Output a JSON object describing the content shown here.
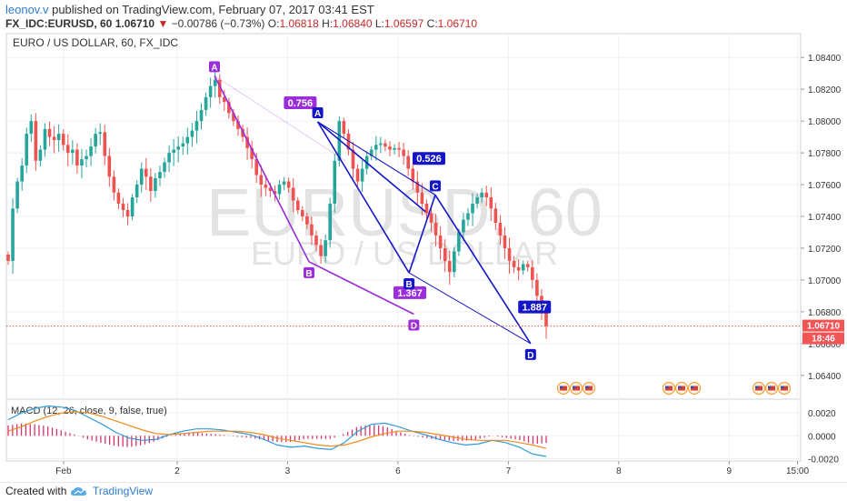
{
  "header": {
    "author": "leonov.v",
    "published_text": "published on TradingView.com, February 07, 2017 03:41 EST",
    "symbol": "FX_IDC:EURUSD, 60",
    "last": "1.06710",
    "change": "−0.00786 (−0.73%)",
    "o_label": "O:",
    "o": "1.06818",
    "h_label": "H:",
    "h": "1.06840",
    "l_label": "L:",
    "l": "1.06597",
    "c_label": "C:",
    "c": "1.06710"
  },
  "chart_title": "EURO / US DOLLAR, 60, FX_IDC",
  "watermark": {
    "line1": "EURUSD, 60",
    "line2": "EURO / US DOLLAR"
  },
  "price_badge": {
    "price": "1.06710",
    "countdown": "18:46"
  },
  "footer": {
    "created": "Created with",
    "brand": "TradingView"
  },
  "colors": {
    "bull": "#26a69a",
    "bear": "#ef5350",
    "purple": "#9b2ddb",
    "blue": "#1515c8",
    "badge": "#f05454"
  },
  "chart_data": [
    {
      "type": "candlestick",
      "title": "EURO / US DOLLAR, 60, FX_IDC",
      "y_ticks": [
        "1.08400",
        "1.08200",
        "1.08000",
        "1.07800",
        "1.07600",
        "1.07400",
        "1.07200",
        "1.07000",
        "1.06800",
        "1.06600",
        "1.06400"
      ],
      "ylim": [
        1.0625,
        1.0855
      ],
      "x_ticks": [
        "Feb",
        "2",
        "3",
        "6",
        "7",
        "8",
        "9",
        "15:00"
      ],
      "close_series": [
        1.0712,
        1.0745,
        1.0762,
        1.0772,
        1.0792,
        1.08,
        1.0775,
        1.0782,
        1.0795,
        1.079,
        1.0788,
        1.0792,
        1.0785,
        1.078,
        1.0782,
        1.0772,
        1.0776,
        1.0778,
        1.0784,
        1.0792,
        1.0793,
        1.0778,
        1.0765,
        1.0755,
        1.0748,
        1.0744,
        1.074,
        1.0752,
        1.076,
        1.077,
        1.0765,
        1.0756,
        1.0764,
        1.0768,
        1.0774,
        1.078,
        1.0782,
        1.0784,
        1.0786,
        1.079,
        1.0794,
        1.08,
        1.0807,
        1.0815,
        1.0822,
        1.0826,
        1.0815,
        1.0812,
        1.0805,
        1.08,
        1.0795,
        1.079,
        1.0783,
        1.0776,
        1.0766,
        1.076,
        1.0758,
        1.0756,
        1.0754,
        1.076,
        1.0762,
        1.0758,
        1.075,
        1.0744,
        1.074,
        1.0735,
        1.0728,
        1.0722,
        1.0715,
        1.0725,
        1.0748,
        1.0775,
        1.08,
        1.0792,
        1.0782,
        1.077,
        1.0762,
        1.077,
        1.0778,
        1.0782,
        1.0785,
        1.0786,
        1.0784,
        1.0782,
        1.0783,
        1.0782,
        1.0778,
        1.077,
        1.0762,
        1.0755,
        1.0748,
        1.0742,
        1.0736,
        1.0728,
        1.072,
        1.0712,
        1.0705,
        1.0718,
        1.073,
        1.0738,
        1.0742,
        1.0748,
        1.0752,
        1.0755,
        1.0752,
        1.0745,
        1.0736,
        1.0728,
        1.072,
        1.0712,
        1.0708,
        1.0706,
        1.071,
        1.0708,
        1.07,
        1.069,
        1.068,
        1.0671
      ],
      "last_price": 1.0671
    },
    {
      "type": "line",
      "title": "MACD (12, 26, close, 9, false, true)",
      "y_ticks": [
        "0.0020",
        "0.0000",
        "-0.0020"
      ],
      "ylim": [
        -0.0022,
        0.0028
      ],
      "series": [
        {
          "name": "MACD",
          "values": [
            0.0014,
            0.002,
            0.0024,
            0.0026,
            0.0025,
            0.0022,
            0.0016,
            0.001,
            0.0003,
            -0.0002,
            -0.0004,
            -0.0003,
            0.0001,
            0.0004,
            0.0006,
            0.0006,
            0.0005,
            0.0003,
            0.0001,
            -0.0003,
            -0.0008,
            -0.001,
            -0.0009,
            -0.0011,
            -0.0012,
            -0.0006,
            0.0004,
            0.001,
            0.0011,
            0.0008,
            0.0004,
            0.0001,
            -0.0003,
            -0.0006,
            -0.0008,
            -0.0007,
            -0.0004,
            -0.0006,
            -0.001,
            -0.0016,
            -0.0018
          ]
        },
        {
          "name": "Signal",
          "values": [
            0.0004,
            0.0008,
            0.0013,
            0.0017,
            0.002,
            0.0021,
            0.002,
            0.0017,
            0.0013,
            0.0009,
            0.0005,
            0.0002,
            0.0001,
            0.0002,
            0.0003,
            0.0004,
            0.0004,
            0.0004,
            0.0003,
            0.0001,
            -0.0002,
            -0.0004,
            -0.0006,
            -0.0008,
            -0.0009,
            -0.0008,
            -0.0005,
            -0.0001,
            0.0002,
            0.0004,
            0.0004,
            0.0003,
            0.0001,
            -0.0001,
            -0.0003,
            -0.0004,
            -0.0004,
            -0.0004,
            -0.0006,
            -0.0008,
            -0.0011
          ]
        }
      ]
    }
  ],
  "patterns": {
    "purple": {
      "points": [
        {
          "label": "A",
          "x_frac": 0.262,
          "price": 1.08285
        },
        {
          "label": "B",
          "x_frac": 0.381,
          "price": 1.07115
        },
        {
          "label": "D",
          "x_frac": 0.513,
          "price": 1.06785
        }
      ],
      "ratios": [
        "0.756",
        "1.367"
      ]
    },
    "blue": {
      "points": [
        {
          "label": "A",
          "x_frac": 0.392,
          "price": 1.07995
        },
        {
          "label": "B",
          "x_frac": 0.507,
          "price": 1.07045
        },
        {
          "label": "C",
          "x_frac": 0.54,
          "price": 1.07535
        },
        {
          "label": "D",
          "x_frac": 0.66,
          "price": 1.066
        }
      ],
      "ratios": [
        "0.526",
        "1.887"
      ]
    }
  }
}
